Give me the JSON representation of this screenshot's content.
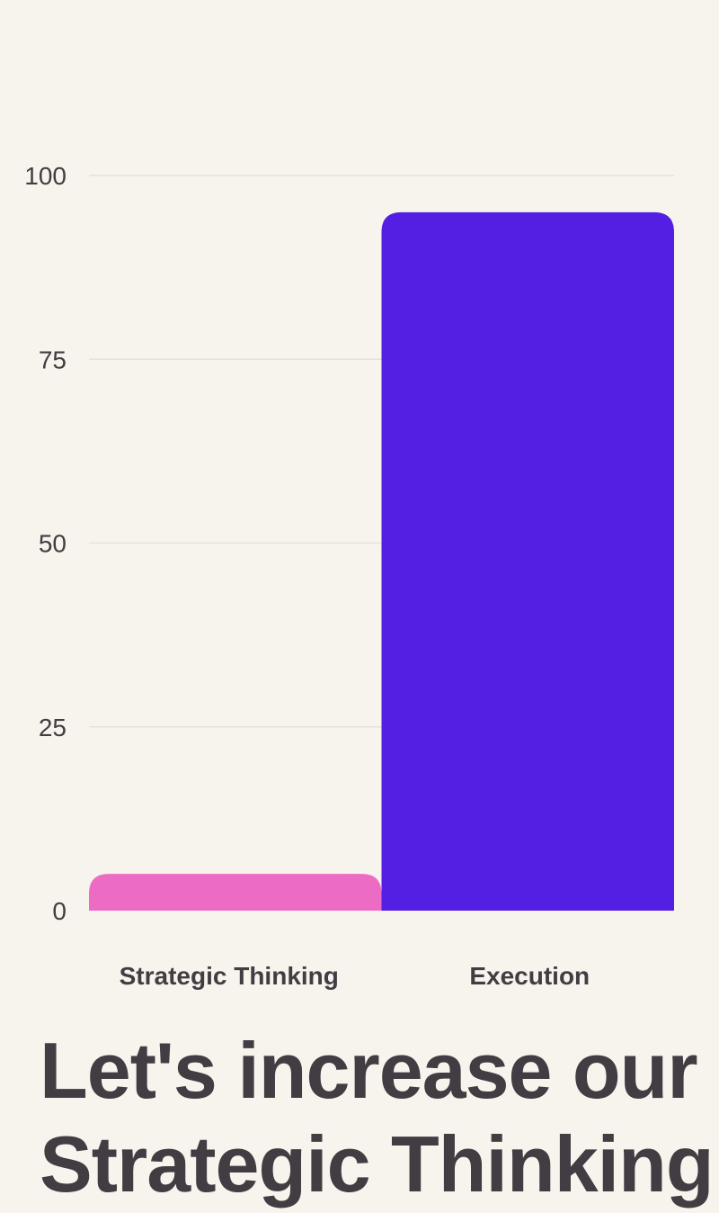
{
  "chart_data": {
    "type": "bar",
    "categories": [
      "Strategic Thinking",
      "Execution"
    ],
    "values": [
      5,
      95
    ],
    "ylim": [
      0,
      100
    ],
    "yticks": [
      0,
      25,
      50,
      75,
      100
    ],
    "grid": true,
    "colors": [
      "#ec6cc4",
      "#551fe3"
    ],
    "title": "",
    "xlabel": "",
    "ylabel": ""
  },
  "headline": {
    "line1": "Let's increase our",
    "line2": "Strategic Thinking"
  },
  "colors": {
    "background": "#f7f4ed",
    "text": "#413d42",
    "gridline": "#e6e2da"
  }
}
